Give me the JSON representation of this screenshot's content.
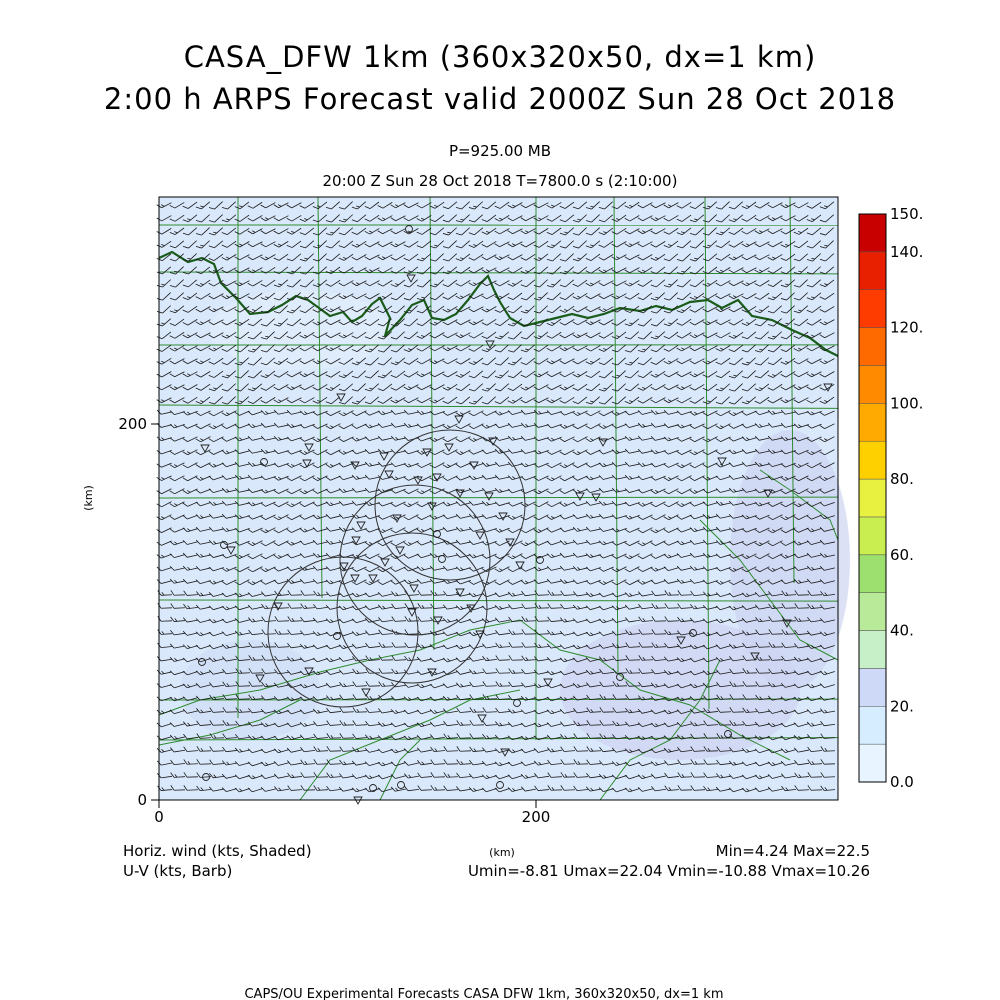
{
  "header": {
    "title_line1": "CASA_DFW 1km (360x320x50, dx=1 km)",
    "title_line2": "2:00 h ARPS Forecast valid 2000Z Sun 28 Oct 2018",
    "level": "P=925.00 MB",
    "time_line": "20:00 Z Sun 28 Oct 2018   T=7800.0 s (2:10:00)"
  },
  "footer": {
    "field_label": "Horiz. wind (kts, Shaded)",
    "vector_label": "U-V (kts, Barb)",
    "minmax": "Min=4.24 Max=22.5",
    "uv_stats": "Umin=-8.81 Umax=22.04 Vmin=-10.88 Vmax=10.26",
    "credit": "CAPS/OU Experimental Forecasts  CASA DFW 1km, 360x320x50, dx=1 km"
  },
  "colors": {
    "background_field": "#d9e8fb",
    "county_lines": "#2e8b2e",
    "river": "#1a5c1a"
  },
  "chart_data": {
    "type": "heatmap",
    "field": "Horizontal wind speed (kts) with U-V wind barbs",
    "xlabel": "(km)",
    "ylabel": "(km)",
    "xlim": [
      0,
      360
    ],
    "ylim": [
      0,
      320
    ],
    "x_ticks": [
      "0",
      "200"
    ],
    "y_ticks": [
      "0",
      "200"
    ],
    "colorbar": {
      "ticks": [
        "0.0",
        "20.",
        "40.",
        "60.",
        "80.",
        "100.",
        "120.",
        "140.",
        "150."
      ],
      "levels": [
        0,
        10,
        20,
        30,
        40,
        50,
        60,
        70,
        80,
        90,
        100,
        110,
        120,
        130,
        140,
        150
      ],
      "colors": [
        "#e8f4ff",
        "#d6ecff",
        "#cdd9f7",
        "#c8f0c8",
        "#b8ea9a",
        "#9ee070",
        "#c8ee50",
        "#e8f040",
        "#ffd000",
        "#ffaa00",
        "#ff8a00",
        "#ff6a00",
        "#ff3c00",
        "#e82000",
        "#c80000"
      ]
    },
    "min": 4.24,
    "max": 22.5,
    "umin": -8.81,
    "umax": 22.04,
    "vmin": -10.88,
    "vmax": 10.26
  }
}
